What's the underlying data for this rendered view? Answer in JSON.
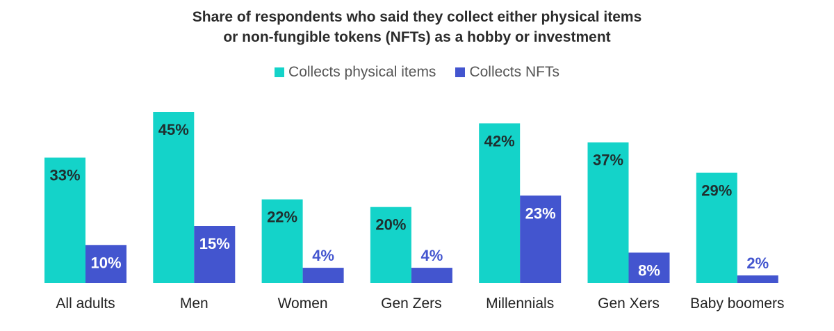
{
  "chart_data": {
    "type": "bar",
    "title_lines": [
      "Share of respondents who said they collect either physical items",
      "or non-fungible tokens (NFTs) as a hobby or investment"
    ],
    "categories": [
      "All adults",
      "Men",
      "Women",
      "Gen Zers",
      "Millennials",
      "Gen Xers",
      "Baby boomers"
    ],
    "series": [
      {
        "name": "Collects physical items",
        "color": "#14d3c9",
        "label_color": "#1f2f2f",
        "values": [
          33,
          45,
          22,
          20,
          42,
          37,
          29
        ],
        "labels": [
          "33%",
          "45%",
          "22%",
          "20%",
          "42%",
          "37%",
          "29%"
        ]
      },
      {
        "name": "Collects NFTs",
        "color": "#4355cf",
        "label_color": "#ffffff",
        "values": [
          10,
          15,
          4,
          4,
          23,
          8,
          2
        ],
        "labels": [
          "10%",
          "15%",
          "4%",
          "4%",
          "23%",
          "8%",
          "2%"
        ]
      }
    ],
    "ylim": [
      0,
      45
    ],
    "grid": false,
    "legend_position": "top-center",
    "xlabel": "",
    "ylabel": ""
  }
}
